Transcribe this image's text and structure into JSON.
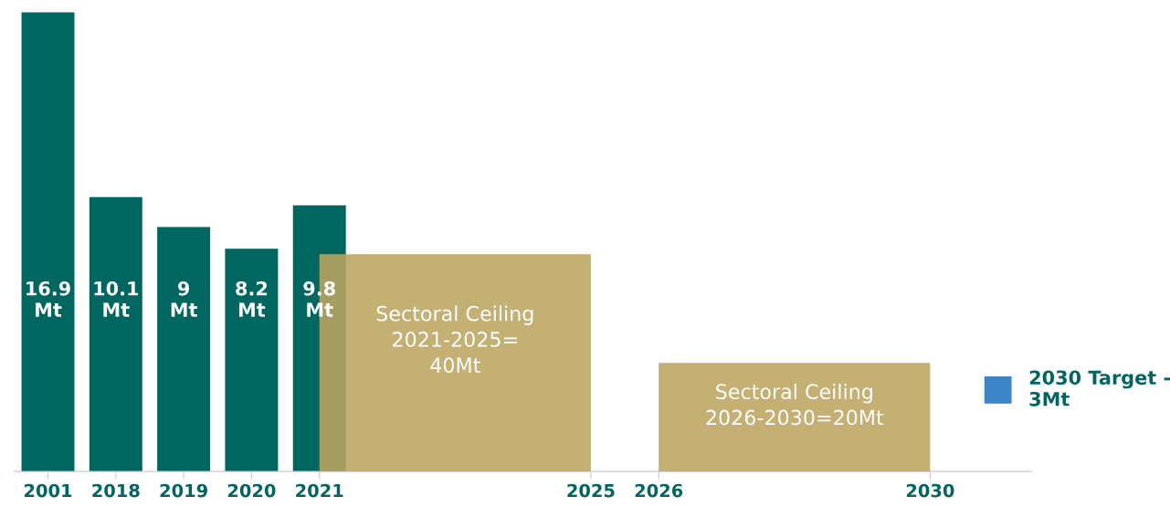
{
  "chart_data": {
    "type": "bar",
    "categories": [
      "2001",
      "2018",
      "2019",
      "2020",
      "2021",
      null,
      null,
      null,
      "2025",
      "2026",
      null,
      null,
      null,
      "2030",
      null
    ],
    "series": [
      {
        "color": "#006760",
        "values": [
          16.9,
          10.1,
          9,
          8.2,
          9.8,
          null,
          null,
          null,
          null,
          null,
          null,
          null,
          null,
          null,
          null
        ],
        "value_labels": [
          "16.9\nMt",
          "10.1\nMt",
          "9\nMt",
          "8.2\nMt",
          "9.8\nMt",
          null,
          null,
          null,
          null,
          null,
          null,
          null,
          null,
          null,
          null
        ]
      },
      {
        "type": "area",
        "color": "#bda561",
        "values": [
          null,
          null,
          null,
          null,
          8,
          8,
          8,
          8,
          8,
          null,
          null,
          null,
          null,
          null,
          null
        ]
      },
      {
        "type": "area",
        "color": "#bda561",
        "values": [
          null,
          null,
          null,
          null,
          null,
          null,
          null,
          null,
          null,
          4,
          4,
          4,
          4,
          4,
          null
        ]
      },
      {
        "type": "scatter",
        "color": "#3d85c6",
        "marker": "square",
        "values": [
          null,
          null,
          null,
          null,
          null,
          null,
          null,
          null,
          null,
          null,
          null,
          null,
          null,
          null,
          3
        ]
      }
    ],
    "annotations": [
      "Sectoral Ceiling\n2021-2025=\n40Mt",
      "Sectoral Ceiling\n2026-2030=20Mt",
      "2030 Target -\n3Mt"
    ],
    "grid": false,
    "legend": false
  }
}
